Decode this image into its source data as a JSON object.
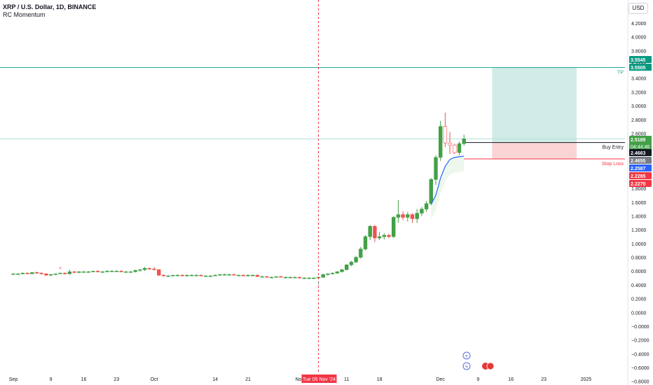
{
  "header": {
    "title": "XRP / U.S. Dollar, 1D, BINANCE",
    "indicator": "RC Momentum",
    "currency": "USD"
  },
  "colors": {
    "up": "#26a69a",
    "up_body": "#43a047",
    "down": "#ef5350",
    "tp_line": "#26a69a",
    "sl_line": "#f23645",
    "entry_line": "#131722",
    "profit_zone": "#d1ece7",
    "loss_zone": "#fbd4d6",
    "crosshair": "#f23645",
    "momentum": "#2962ff"
  },
  "price_axis": {
    "ticks": [
      "4.2000",
      "4.0000",
      "3.8000",
      "3.6000",
      "3.4000",
      "3.2000",
      "3.0000",
      "2.8000",
      "2.6000",
      "2.4000",
      "2.2000",
      "2.0000",
      "1.8000",
      "1.6000",
      "1.4000",
      "1.2000",
      "1.0000",
      "0.8000",
      "0.6000",
      "0.4000",
      "0.2000",
      "0.0000",
      "−0.0000",
      "−0.2000",
      "−0.4000",
      "−0.6000",
      "−0.8000"
    ],
    "ymin": -0.9,
    "ymax": 4.3,
    "badges": [
      {
        "label": "3.5545",
        "value": 3.5545,
        "color": "#089981",
        "text_color": "#ffffff"
      },
      {
        "label": "3.5505",
        "value": 3.5505,
        "color": "#089981",
        "text_color": "#ffffff"
      },
      {
        "label": "2.5189",
        "sub": "04:44:46",
        "value": 2.5189,
        "color": "#43a047",
        "text_color": "#ffffff"
      },
      {
        "label": "2.4663",
        "value": 2.4663,
        "color": "#131722",
        "text_color": "#ffffff"
      },
      {
        "label": "2.4655",
        "value": 2.4655,
        "color": "#787b86",
        "text_color": "#ffffff"
      },
      {
        "label": "2.2587",
        "value": 2.2587,
        "color": "#2962ff",
        "text_color": "#ffffff"
      },
      {
        "label": "2.2285",
        "value": 2.2285,
        "color": "#f23645",
        "text_color": "#ffffff"
      },
      {
        "label": "2.2270",
        "value": 2.227,
        "color": "#f23645",
        "text_color": "#ffffff"
      }
    ]
  },
  "time_axis": {
    "ticks": [
      {
        "label": "Sep",
        "day": 0
      },
      {
        "label": "9",
        "day": 8
      },
      {
        "label": "16",
        "day": 15
      },
      {
        "label": "23",
        "day": 22
      },
      {
        "label": "Oct",
        "day": 30
      },
      {
        "label": "14",
        "day": 43
      },
      {
        "label": "21",
        "day": 50
      },
      {
        "label": "Nov",
        "day": 61
      },
      {
        "label": "11",
        "day": 71
      },
      {
        "label": "18",
        "day": 78
      },
      {
        "label": "Dec",
        "day": 91
      },
      {
        "label": "9",
        "day": 99
      },
      {
        "label": "16",
        "day": 106
      },
      {
        "label": "23",
        "day": 113
      },
      {
        "label": "2025",
        "day": 122
      }
    ],
    "crosshair_label": "Tue 05 Nov '24",
    "crosshair_day": 65
  },
  "levels": {
    "tp": {
      "label": "TP",
      "value": 3.5545
    },
    "entry": {
      "label": "Buy Entry",
      "value": 2.4663
    },
    "stop": {
      "label": "Stop Loss",
      "value": 2.2285
    },
    "current": 2.5189
  },
  "position": {
    "start_day": 102,
    "end_day": 120
  },
  "chart_data": {
    "type": "candlestick",
    "title": "XRP / U.S. Dollar, 1D, BINANCE",
    "x_unit": "days since Sep 1, 2024",
    "candles": [
      [
        0,
        0.56,
        0.57,
        0.55,
        0.56
      ],
      [
        1,
        0.56,
        0.57,
        0.55,
        0.56
      ],
      [
        2,
        0.56,
        0.58,
        0.55,
        0.57
      ],
      [
        3,
        0.57,
        0.58,
        0.56,
        0.56
      ],
      [
        4,
        0.56,
        0.58,
        0.56,
        0.58
      ],
      [
        5,
        0.58,
        0.59,
        0.56,
        0.57
      ],
      [
        6,
        0.57,
        0.58,
        0.55,
        0.56
      ],
      [
        7,
        0.56,
        0.57,
        0.53,
        0.54
      ],
      [
        8,
        0.54,
        0.56,
        0.53,
        0.55
      ],
      [
        9,
        0.55,
        0.56,
        0.54,
        0.56
      ],
      [
        10,
        0.56,
        0.58,
        0.56,
        0.57
      ],
      [
        11,
        0.57,
        0.58,
        0.55,
        0.56
      ],
      [
        12,
        0.56,
        0.62,
        0.55,
        0.59
      ],
      [
        13,
        0.59,
        0.6,
        0.57,
        0.58
      ],
      [
        14,
        0.58,
        0.6,
        0.57,
        0.59
      ],
      [
        15,
        0.59,
        0.6,
        0.58,
        0.59
      ],
      [
        16,
        0.59,
        0.6,
        0.58,
        0.59
      ],
      [
        17,
        0.59,
        0.6,
        0.58,
        0.6
      ],
      [
        18,
        0.6,
        0.61,
        0.58,
        0.59
      ],
      [
        19,
        0.59,
        0.6,
        0.58,
        0.59
      ],
      [
        20,
        0.59,
        0.61,
        0.58,
        0.6
      ],
      [
        21,
        0.6,
        0.61,
        0.59,
        0.6
      ],
      [
        22,
        0.6,
        0.61,
        0.59,
        0.6
      ],
      [
        23,
        0.6,
        0.61,
        0.58,
        0.59
      ],
      [
        24,
        0.59,
        0.6,
        0.58,
        0.59
      ],
      [
        25,
        0.59,
        0.6,
        0.58,
        0.59
      ],
      [
        26,
        0.59,
        0.62,
        0.58,
        0.61
      ],
      [
        27,
        0.61,
        0.63,
        0.59,
        0.62
      ],
      [
        28,
        0.62,
        0.66,
        0.6,
        0.64
      ],
      [
        29,
        0.64,
        0.65,
        0.62,
        0.63
      ],
      [
        30,
        0.63,
        0.66,
        0.61,
        0.62
      ],
      [
        31,
        0.62,
        0.63,
        0.53,
        0.54
      ],
      [
        32,
        0.54,
        0.55,
        0.52,
        0.53
      ],
      [
        33,
        0.53,
        0.54,
        0.52,
        0.53
      ],
      [
        34,
        0.53,
        0.54,
        0.52,
        0.54
      ],
      [
        35,
        0.54,
        0.55,
        0.53,
        0.54
      ],
      [
        36,
        0.54,
        0.55,
        0.53,
        0.53
      ],
      [
        37,
        0.53,
        0.55,
        0.52,
        0.54
      ],
      [
        38,
        0.54,
        0.55,
        0.53,
        0.54
      ],
      [
        39,
        0.54,
        0.55,
        0.53,
        0.54
      ],
      [
        40,
        0.54,
        0.55,
        0.53,
        0.53
      ],
      [
        41,
        0.53,
        0.54,
        0.52,
        0.53
      ],
      [
        42,
        0.53,
        0.54,
        0.52,
        0.53
      ],
      [
        43,
        0.53,
        0.55,
        0.53,
        0.54
      ],
      [
        44,
        0.54,
        0.55,
        0.53,
        0.55
      ],
      [
        45,
        0.55,
        0.56,
        0.54,
        0.55
      ],
      [
        46,
        0.55,
        0.56,
        0.54,
        0.55
      ],
      [
        47,
        0.55,
        0.56,
        0.54,
        0.54
      ],
      [
        48,
        0.54,
        0.55,
        0.53,
        0.54
      ],
      [
        49,
        0.54,
        0.55,
        0.53,
        0.53
      ],
      [
        50,
        0.53,
        0.55,
        0.52,
        0.54
      ],
      [
        51,
        0.54,
        0.55,
        0.53,
        0.54
      ],
      [
        52,
        0.54,
        0.55,
        0.52,
        0.52
      ],
      [
        53,
        0.52,
        0.53,
        0.51,
        0.52
      ],
      [
        54,
        0.52,
        0.53,
        0.51,
        0.51
      ],
      [
        55,
        0.51,
        0.52,
        0.5,
        0.51
      ],
      [
        56,
        0.51,
        0.52,
        0.5,
        0.52
      ],
      [
        57,
        0.52,
        0.53,
        0.51,
        0.51
      ],
      [
        58,
        0.51,
        0.52,
        0.5,
        0.51
      ],
      [
        59,
        0.51,
        0.52,
        0.5,
        0.51
      ],
      [
        60,
        0.51,
        0.52,
        0.5,
        0.51
      ],
      [
        61,
        0.51,
        0.52,
        0.49,
        0.5
      ],
      [
        62,
        0.5,
        0.51,
        0.49,
        0.5
      ],
      [
        63,
        0.5,
        0.51,
        0.49,
        0.5
      ],
      [
        64,
        0.5,
        0.51,
        0.49,
        0.5
      ],
      [
        65,
        0.5,
        0.52,
        0.49,
        0.51
      ],
      [
        66,
        0.51,
        0.56,
        0.5,
        0.55
      ],
      [
        67,
        0.55,
        0.57,
        0.53,
        0.56
      ],
      [
        68,
        0.56,
        0.58,
        0.55,
        0.57
      ],
      [
        69,
        0.57,
        0.6,
        0.56,
        0.59
      ],
      [
        70,
        0.59,
        0.63,
        0.58,
        0.62
      ],
      [
        71,
        0.62,
        0.7,
        0.61,
        0.69
      ],
      [
        72,
        0.69,
        0.75,
        0.67,
        0.73
      ],
      [
        73,
        0.73,
        0.82,
        0.72,
        0.8
      ],
      [
        74,
        0.8,
        0.95,
        0.78,
        0.92
      ],
      [
        75,
        0.92,
        1.12,
        0.9,
        1.1
      ],
      [
        76,
        1.1,
        1.27,
        1.05,
        1.25
      ],
      [
        77,
        1.25,
        1.27,
        1.02,
        1.08
      ],
      [
        78,
        1.08,
        1.17,
        1.05,
        1.1
      ],
      [
        79,
        1.1,
        1.15,
        1.06,
        1.12
      ],
      [
        80,
        1.12,
        1.14,
        1.08,
        1.1
      ],
      [
        81,
        1.1,
        1.4,
        1.08,
        1.38
      ],
      [
        82,
        1.38,
        1.63,
        1.3,
        1.42
      ],
      [
        83,
        1.42,
        1.47,
        1.34,
        1.38
      ],
      [
        84,
        1.38,
        1.46,
        1.32,
        1.42
      ],
      [
        85,
        1.42,
        1.44,
        1.3,
        1.36
      ],
      [
        86,
        1.36,
        1.5,
        1.3,
        1.44
      ],
      [
        87,
        1.44,
        1.53,
        1.4,
        1.5
      ],
      [
        88,
        1.5,
        1.62,
        1.46,
        1.58
      ],
      [
        89,
        1.58,
        1.95,
        1.55,
        1.93
      ],
      [
        90,
        1.93,
        2.28,
        1.85,
        2.25
      ],
      [
        91,
        2.25,
        2.78,
        2.2,
        2.7
      ],
      [
        92,
        2.7,
        2.9,
        2.4,
        2.46
      ],
      [
        93,
        2.46,
        2.62,
        2.3,
        2.43
      ],
      [
        94,
        2.43,
        2.45,
        2.3,
        2.32
      ],
      [
        95,
        2.32,
        2.48,
        2.28,
        2.45
      ],
      [
        96,
        2.45,
        2.58,
        2.42,
        2.52
      ]
    ],
    "momentum_line": [
      [
        89,
        1.57
      ],
      [
        90,
        1.7
      ],
      [
        91,
        1.95
      ],
      [
        92,
        2.12
      ],
      [
        93,
        2.22
      ],
      [
        94,
        2.25
      ],
      [
        95,
        2.26
      ],
      [
        96,
        2.27
      ]
    ]
  }
}
